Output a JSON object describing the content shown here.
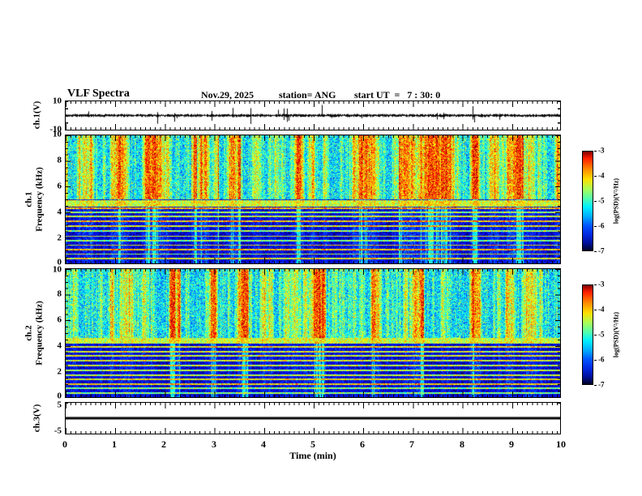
{
  "header": {
    "title": "VLF Spectra",
    "date": "Nov.29, 2025",
    "station": "station= ANG",
    "start_ut": "start UT  =   7 : 30: 0"
  },
  "xaxis": {
    "label": "Time (min)",
    "range": [
      0,
      10
    ],
    "tick_labels": [
      "0",
      "1",
      "2",
      "3",
      "4",
      "5",
      "6",
      "7",
      "8",
      "9",
      "10"
    ],
    "minor_tick_interval_min": 0.1
  },
  "colorbar": {
    "label": "log(PSD)(V²/Hz)",
    "tick_labels": [
      "-3",
      "-4",
      "-5",
      "-6",
      "-7"
    ],
    "range_log_psd": [
      -7,
      -3
    ],
    "colormap": "jet"
  },
  "panels": {
    "ch1_wave": {
      "ylabel": "ch.1(V)",
      "ytick_labels": [
        "10",
        "-10"
      ]
    },
    "ch1_spec": {
      "ylabel_channel": "ch.1",
      "ylabel_axis": "Frequency (kHz)",
      "ytick_labels": [
        "10",
        "8",
        "6",
        "4",
        "2",
        "0"
      ]
    },
    "ch2_spec": {
      "ylabel_channel": "ch.2",
      "ylabel_axis": "Frequency (kHz)",
      "ytick_labels": [
        "10",
        "8",
        "6",
        "4",
        "2",
        "0"
      ]
    },
    "ch3_wave": {
      "ylabel": "ch.3(V)",
      "ytick_labels": [
        "5",
        "-5"
      ]
    }
  },
  "chart_data": [
    {
      "type": "line",
      "name": "ch1-waveform",
      "ylabel": "ch.1(V)",
      "ylim": [
        -10,
        10
      ],
      "xlim": [
        0,
        10
      ],
      "waveform_shape": "noisy-with-spikes",
      "baseline_v": 0,
      "spike_amplitude_v": 10,
      "description": "Broadband VLF time series: dense low-amplitude noise around 0 V with impulsive sferic spikes reaching toward +/-10 V throughout the 10-minute record"
    },
    {
      "type": "heatmap",
      "name": "ch1-spectrogram",
      "xlabel": "Time (min)",
      "ylabel": "ch.1 Frequency (kHz)",
      "xlim": [
        0,
        10
      ],
      "ylim": [
        0,
        10
      ],
      "value_label": "log(PSD)(V²/Hz)",
      "value_range": [
        -7,
        -3
      ],
      "colormap": "jet",
      "render_seed": 42,
      "features": {
        "broadband_sferics_above_khz": 5.0,
        "cutoff_band_khz": [
          4.45,
          4.95
        ],
        "narrowband_lines_khz": [
          0.35,
          0.7,
          1.05,
          1.4,
          1.75,
          2.1,
          2.5,
          2.9,
          3.3,
          3.65,
          4.0,
          4.3
        ],
        "description": "Vertical broadband sferic streaks (green/yellow/red, log PSD near -4 to -3) above ~5 kHz separated by dark-blue quiet gaps; dark-blue/black background (log PSD near -7) below 5 kHz crossed by thin persistent narrowband horizontal emission lines (cyan/green, log PSD near -5) and a bright cyan cutoff band near 4.5-5 kHz"
      }
    },
    {
      "type": "heatmap",
      "name": "ch2-spectrogram",
      "xlabel": "Time (min)",
      "ylabel": "ch.2 Frequency (kHz)",
      "xlim": [
        0,
        10
      ],
      "ylim": [
        0,
        10
      ],
      "value_label": "log(PSD)(V²/Hz)",
      "value_range": [
        -7,
        -3
      ],
      "colormap": "jet",
      "render_seed": 1337,
      "features": {
        "broadband_sferics_above_khz": 4.6,
        "cutoff_band_khz": [
          4.2,
          4.7
        ],
        "narrowband_lines_khz": [
          0.3,
          0.65,
          1.0,
          1.35,
          1.7,
          2.05,
          2.45,
          2.85,
          3.2,
          3.55,
          3.9
        ],
        "description": "Same structure as ch.1: broadband sferic streaks above ~4.6 kHz, dark background with narrowband horizontal lines below, bright cyan cutoff band near 4.2-4.7 kHz"
      }
    },
    {
      "type": "line",
      "name": "ch3-waveform",
      "ylabel": "ch.3(V)",
      "ylim": [
        -5,
        5
      ],
      "xlim": [
        0,
        10
      ],
      "waveform_shape": "flat",
      "baseline_v": 0,
      "description": "Constant flat trace at 0 V for the whole record"
    }
  ]
}
